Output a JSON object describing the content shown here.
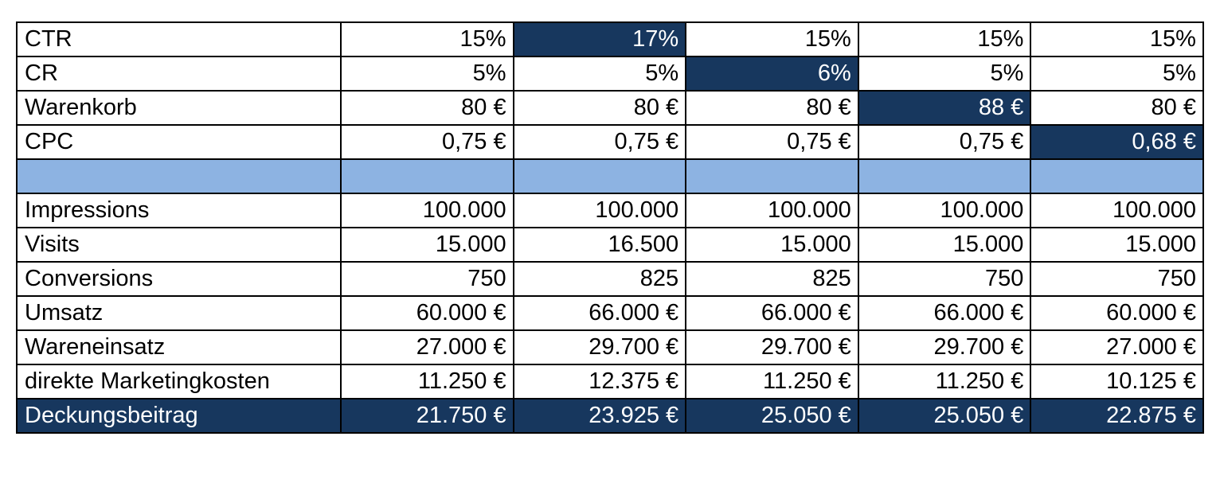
{
  "table": {
    "input_rows": [
      {
        "label": "CTR",
        "values": [
          "15%",
          "17%",
          "15%",
          "15%",
          "15%"
        ],
        "highlight": 1
      },
      {
        "label": "CR",
        "values": [
          "5%",
          "5%",
          "6%",
          "5%",
          "5%"
        ],
        "highlight": 2
      },
      {
        "label": "Warenkorb",
        "values": [
          "80 €",
          "80 €",
          "80 €",
          "88 €",
          "80 €"
        ],
        "highlight": 3
      },
      {
        "label": "CPC",
        "values": [
          "0,75 €",
          "0,75 €",
          "0,75 €",
          "0,75 €",
          "0,68 €"
        ],
        "highlight": 4
      }
    ],
    "result_rows": [
      {
        "label": "Impressions",
        "values": [
          "100.000",
          "100.000",
          "100.000",
          "100.000",
          "100.000"
        ]
      },
      {
        "label": "Visits",
        "values": [
          "15.000",
          "16.500",
          "15.000",
          "15.000",
          "15.000"
        ]
      },
      {
        "label": "Conversions",
        "values": [
          "750",
          "825",
          "825",
          "750",
          "750"
        ]
      },
      {
        "label": "Umsatz",
        "values": [
          "60.000 €",
          "66.000 €",
          "66.000 €",
          "66.000 €",
          "60.000 €"
        ]
      },
      {
        "label": "Wareneinsatz",
        "values": [
          "27.000 €",
          "29.700 €",
          "29.700 €",
          "29.700 €",
          "27.000 €"
        ]
      },
      {
        "label": "direkte Marketingkosten",
        "values": [
          "11.250 €",
          "12.375 €",
          "11.250 €",
          "11.250 €",
          "10.125 €"
        ]
      }
    ],
    "total_row": {
      "label": "Deckungsbeitrag",
      "values": [
        "21.750 €",
        "23.925 €",
        "25.050 €",
        "25.050 €",
        "22.875 €"
      ]
    }
  },
  "colors": {
    "highlight": "#17375e",
    "spacer": "#8db3e2"
  }
}
